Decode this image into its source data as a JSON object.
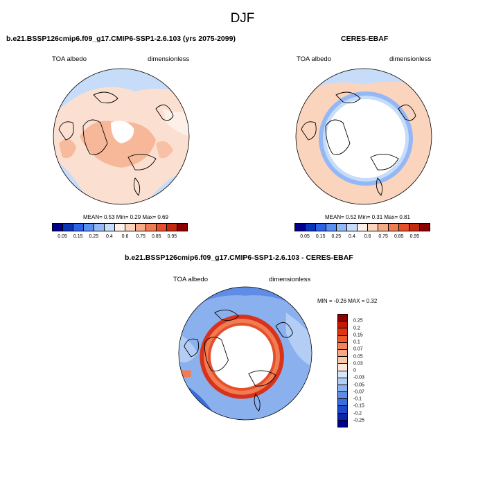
{
  "figure": {
    "title": "DJF"
  },
  "panels": [
    {
      "title": "b.e21.BSSP126cmip6.f09_g17.CMIP6-SSP1-2.6.103 (yrs 2075-2099)",
      "left_label": "TOA albedo",
      "right_label": "dimensionless",
      "stats": "MEAN=   0.53  Min=   0.29  Max=   0.69"
    },
    {
      "title": "CERES-EBAF",
      "left_label": "TOA albedo",
      "right_label": "dimensionless",
      "stats": "MEAN=   0.52  Min=   0.31  Max=   0.81"
    },
    {
      "title": "b.e21.BSSP126cmip6.f09_g17.CMIP6-SSP1-2.6.103 - CERES-EBAF",
      "left_label": "TOA albedo",
      "right_label": "dimensionless",
      "stats": "MIN = -0.26 MAX =  0.32"
    }
  ],
  "colorbar_abs": {
    "colors": [
      "#00008c",
      "#0a34b8",
      "#2e62e4",
      "#5a8ef0",
      "#94b8f5",
      "#c6dcf9",
      "#fdf0e8",
      "#fbd4bd",
      "#f6aa86",
      "#f07c54",
      "#e64f2a",
      "#c42a10",
      "#8c0000"
    ],
    "ticks": [
      "0.05",
      "0.15",
      "0.25",
      "0.4",
      "0.6",
      "0.75",
      "0.85",
      "0.95"
    ]
  },
  "colorbar_diff": {
    "colors": [
      "#8c0000",
      "#c41a00",
      "#dc3614",
      "#ec5a2e",
      "#f48458",
      "#f8a880",
      "#fac8aa",
      "#fde7d9",
      "#d8e6fa",
      "#b4cdf5",
      "#8ab0ee",
      "#5e8ce6",
      "#3a6cdc",
      "#1e48cc",
      "#0c24a8",
      "#00008c"
    ],
    "ticks": [
      "0.25",
      "0.2",
      "0.15",
      "0.1",
      "0.07",
      "0.05",
      "0.03",
      "0",
      "-0.03",
      "-0.05",
      "-0.07",
      "-0.1",
      "-0.15",
      "-0.2",
      "-0.25"
    ]
  }
}
